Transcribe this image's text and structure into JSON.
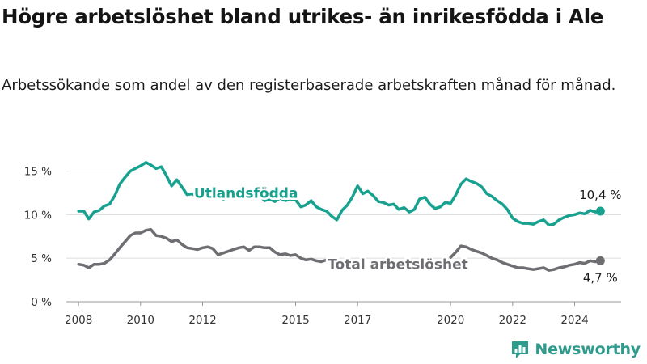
{
  "title": "Högre arbetslöshet bland utrikes- än inrikesfödda i Ale",
  "subtitle": "Arbetssökande som andel av den registerbaserade arbetskraften månad för månad.",
  "brand": {
    "name": "Newsworthy",
    "icon": "newsworthy-logo-icon",
    "color": "#2f9b8d"
  },
  "chart_data": {
    "type": "line",
    "ylim": [
      0,
      17
    ],
    "xlim": [
      2007.5,
      2025.5
    ],
    "y_ticks": [
      0,
      5,
      10,
      15
    ],
    "y_tick_labels": [
      "0 %",
      "5 %",
      "10 %",
      "15 %"
    ],
    "x_ticks": [
      2008,
      2010,
      2012,
      2015,
      2017,
      2020,
      2022,
      2024
    ],
    "x_tick_labels": [
      "2008",
      "2010",
      "2012",
      "2015",
      "2017",
      "2020",
      "2022",
      "2024"
    ],
    "grid": true,
    "series": [
      {
        "name": "Utlandsfödda",
        "color": "#17a18f",
        "end_label": "10,4 %",
        "points": [
          [
            2008.0,
            10.4
          ],
          [
            2008.17,
            10.4
          ],
          [
            2008.33,
            9.5
          ],
          [
            2008.5,
            10.3
          ],
          [
            2008.67,
            10.5
          ],
          [
            2008.83,
            11.0
          ],
          [
            2009.0,
            11.2
          ],
          [
            2009.17,
            12.2
          ],
          [
            2009.33,
            13.5
          ],
          [
            2009.5,
            14.3
          ],
          [
            2009.67,
            15.0
          ],
          [
            2009.83,
            15.3
          ],
          [
            2010.0,
            15.6
          ],
          [
            2010.17,
            16.0
          ],
          [
            2010.33,
            15.7
          ],
          [
            2010.5,
            15.3
          ],
          [
            2010.67,
            15.5
          ],
          [
            2010.83,
            14.5
          ],
          [
            2011.0,
            13.3
          ],
          [
            2011.17,
            14.0
          ],
          [
            2011.33,
            13.2
          ],
          [
            2011.5,
            12.3
          ],
          [
            2011.67,
            12.4
          ],
          [
            2011.83,
            12.0
          ],
          [
            2012.0,
            12.5
          ],
          [
            2012.17,
            12.8
          ],
          [
            2012.33,
            12.5
          ],
          [
            2012.5,
            12.0
          ],
          [
            2012.67,
            11.8
          ],
          [
            2012.83,
            12.0
          ],
          [
            2013.92,
            11.9
          ],
          [
            2014.0,
            11.6
          ],
          [
            2014.17,
            11.8
          ],
          [
            2014.33,
            11.5
          ],
          [
            2014.5,
            11.9
          ],
          [
            2014.67,
            11.6
          ],
          [
            2014.83,
            11.8
          ],
          [
            2015.0,
            11.7
          ],
          [
            2015.17,
            10.9
          ],
          [
            2015.33,
            11.1
          ],
          [
            2015.5,
            11.6
          ],
          [
            2015.67,
            10.9
          ],
          [
            2015.83,
            10.6
          ],
          [
            2016.0,
            10.4
          ],
          [
            2016.17,
            9.8
          ],
          [
            2016.33,
            9.4
          ],
          [
            2016.5,
            10.5
          ],
          [
            2016.67,
            11.1
          ],
          [
            2016.83,
            12.0
          ],
          [
            2017.0,
            13.3
          ],
          [
            2017.17,
            12.4
          ],
          [
            2017.33,
            12.7
          ],
          [
            2017.5,
            12.2
          ],
          [
            2017.67,
            11.5
          ],
          [
            2017.83,
            11.4
          ],
          [
            2018.0,
            11.1
          ],
          [
            2018.17,
            11.2
          ],
          [
            2018.33,
            10.6
          ],
          [
            2018.5,
            10.8
          ],
          [
            2018.67,
            10.3
          ],
          [
            2018.83,
            10.6
          ],
          [
            2019.0,
            11.8
          ],
          [
            2019.17,
            12.0
          ],
          [
            2019.33,
            11.2
          ],
          [
            2019.5,
            10.7
          ],
          [
            2019.67,
            10.9
          ],
          [
            2019.83,
            11.4
          ],
          [
            2020.0,
            11.3
          ],
          [
            2020.17,
            12.3
          ],
          [
            2020.33,
            13.5
          ],
          [
            2020.5,
            14.1
          ],
          [
            2020.67,
            13.8
          ],
          [
            2020.83,
            13.6
          ],
          [
            2021.0,
            13.2
          ],
          [
            2021.17,
            12.4
          ],
          [
            2021.33,
            12.1
          ],
          [
            2021.5,
            11.6
          ],
          [
            2021.67,
            11.2
          ],
          [
            2021.83,
            10.6
          ],
          [
            2022.0,
            9.6
          ],
          [
            2022.17,
            9.2
          ],
          [
            2022.33,
            9.0
          ],
          [
            2022.5,
            9.0
          ],
          [
            2022.67,
            8.9
          ],
          [
            2022.83,
            9.2
          ],
          [
            2023.0,
            9.4
          ],
          [
            2023.17,
            8.8
          ],
          [
            2023.33,
            8.9
          ],
          [
            2023.5,
            9.4
          ],
          [
            2023.67,
            9.7
          ],
          [
            2023.83,
            9.9
          ],
          [
            2024.0,
            10.0
          ],
          [
            2024.17,
            10.2
          ],
          [
            2024.33,
            10.1
          ],
          [
            2024.5,
            10.5
          ],
          [
            2024.67,
            10.3
          ],
          [
            2024.83,
            10.4
          ]
        ],
        "gaps": [
          [
            2012.9,
            2013.9
          ]
        ]
      },
      {
        "name": "Total arbetslöshet",
        "color": "#6e6e72",
        "end_label": "4,7 %",
        "points": [
          [
            2008.0,
            4.3
          ],
          [
            2008.17,
            4.2
          ],
          [
            2008.33,
            3.9
          ],
          [
            2008.5,
            4.3
          ],
          [
            2008.67,
            4.3
          ],
          [
            2008.83,
            4.4
          ],
          [
            2009.0,
            4.8
          ],
          [
            2009.17,
            5.5
          ],
          [
            2009.33,
            6.2
          ],
          [
            2009.5,
            6.9
          ],
          [
            2009.67,
            7.6
          ],
          [
            2009.83,
            7.9
          ],
          [
            2010.0,
            7.9
          ],
          [
            2010.17,
            8.2
          ],
          [
            2010.33,
            8.3
          ],
          [
            2010.5,
            7.6
          ],
          [
            2010.67,
            7.5
          ],
          [
            2010.83,
            7.3
          ],
          [
            2011.0,
            6.9
          ],
          [
            2011.17,
            7.1
          ],
          [
            2011.33,
            6.6
          ],
          [
            2011.5,
            6.2
          ],
          [
            2011.67,
            6.1
          ],
          [
            2011.83,
            6.0
          ],
          [
            2012.0,
            6.2
          ],
          [
            2012.17,
            6.3
          ],
          [
            2012.33,
            6.1
          ],
          [
            2012.5,
            5.4
          ],
          [
            2012.67,
            5.6
          ],
          [
            2012.83,
            5.8
          ],
          [
            2013.0,
            6.0
          ],
          [
            2013.17,
            6.2
          ],
          [
            2013.33,
            6.3
          ],
          [
            2013.5,
            5.9
          ],
          [
            2013.67,
            6.3
          ],
          [
            2013.83,
            6.3
          ],
          [
            2014.0,
            6.2
          ],
          [
            2014.17,
            6.2
          ],
          [
            2014.33,
            5.7
          ],
          [
            2014.5,
            5.4
          ],
          [
            2014.67,
            5.5
          ],
          [
            2014.83,
            5.3
          ],
          [
            2015.0,
            5.4
          ],
          [
            2015.17,
            5.0
          ],
          [
            2015.33,
            4.8
          ],
          [
            2015.5,
            4.9
          ],
          [
            2015.67,
            4.7
          ],
          [
            2015.83,
            4.6
          ],
          [
            2016.0,
            4.8
          ],
          [
            2016.17,
            4.5
          ],
          [
            2016.33,
            4.1
          ],
          [
            2016.5,
            4.4
          ],
          [
            2020.0,
            5.1
          ],
          [
            2020.17,
            5.7
          ],
          [
            2020.33,
            6.4
          ],
          [
            2020.5,
            6.3
          ],
          [
            2020.67,
            6.0
          ],
          [
            2020.83,
            5.8
          ],
          [
            2021.0,
            5.6
          ],
          [
            2021.17,
            5.3
          ],
          [
            2021.33,
            5.0
          ],
          [
            2021.5,
            4.8
          ],
          [
            2021.67,
            4.5
          ],
          [
            2021.83,
            4.3
          ],
          [
            2022.0,
            4.1
          ],
          [
            2022.17,
            3.9
          ],
          [
            2022.33,
            3.9
          ],
          [
            2022.5,
            3.8
          ],
          [
            2022.67,
            3.7
          ],
          [
            2022.83,
            3.8
          ],
          [
            2023.0,
            3.9
          ],
          [
            2023.17,
            3.6
          ],
          [
            2023.33,
            3.7
          ],
          [
            2023.5,
            3.9
          ],
          [
            2023.67,
            4.0
          ],
          [
            2023.83,
            4.2
          ],
          [
            2024.0,
            4.3
          ],
          [
            2024.17,
            4.5
          ],
          [
            2024.33,
            4.4
          ],
          [
            2024.5,
            4.7
          ],
          [
            2024.67,
            4.6
          ],
          [
            2024.83,
            4.7
          ]
        ],
        "gaps": [
          [
            2016.55,
            2019.95
          ]
        ]
      }
    ]
  }
}
